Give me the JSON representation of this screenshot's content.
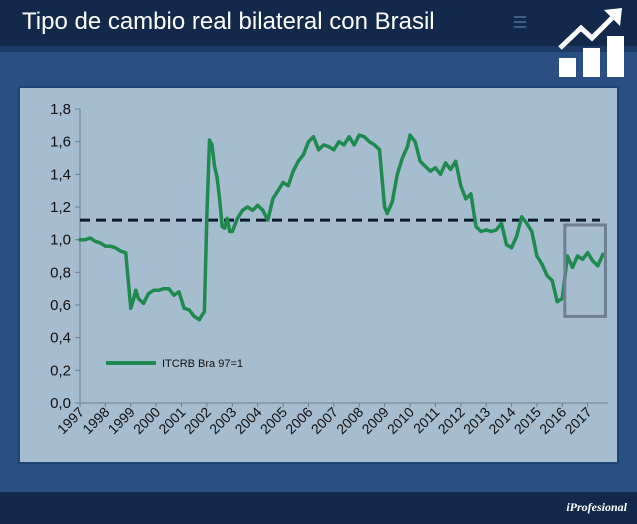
{
  "header": {
    "title": "Tipo de cambio real bilateral con Brasil"
  },
  "logo": {
    "icon": "growth-chart-icon"
  },
  "footer": {
    "brand": "iProfesional"
  },
  "colors": {
    "header_bg": "#13294b",
    "page_bg": "#2a4f82",
    "plot_bg": "#a6bccf",
    "series": "#1e8a4f",
    "reference": "#0d1b2e",
    "highlight_box": "#6f8092"
  },
  "chart_data": {
    "type": "line",
    "title": "Tipo de cambio real bilateral con Brasil",
    "xlabel": "",
    "ylabel": "",
    "x_range": [
      1997,
      2017.8
    ],
    "ylim": [
      0,
      1.8
    ],
    "y_ticks": [
      "0,0",
      "0,2",
      "0,4",
      "0,6",
      "0,8",
      "1,0",
      "1,2",
      "1,4",
      "1,6",
      "1,8"
    ],
    "y_tick_values": [
      0,
      0.2,
      0.4,
      0.6,
      0.8,
      1.0,
      1.2,
      1.4,
      1.6,
      1.8
    ],
    "x_ticks": [
      "1997",
      "1998",
      "1999",
      "2000",
      "2001",
      "2002",
      "2003",
      "2004",
      "2005",
      "2006",
      "2007",
      "2008",
      "2009",
      "2010",
      "2011",
      "2012",
      "2013",
      "2014",
      "2015",
      "2016",
      "2017"
    ],
    "grid": false,
    "legend": {
      "position": "bottom-left",
      "label": "ITCRB Bra 97=1"
    },
    "reference_line": {
      "value": 1.12,
      "style": "dashed"
    },
    "highlight_range": {
      "x": [
        2016.1,
        2017.7
      ],
      "y": [
        0.53,
        1.09
      ]
    },
    "series": [
      {
        "name": "ITCRB Bra 97=1",
        "x": [
          1997.0,
          1997.2,
          1997.4,
          1997.6,
          1997.8,
          1998.0,
          1998.2,
          1998.4,
          1998.6,
          1998.8,
          1999.0,
          1999.1,
          1999.2,
          1999.3,
          1999.5,
          1999.7,
          1999.9,
          2000.1,
          2000.3,
          2000.5,
          2000.7,
          2000.9,
          2001.1,
          2001.3,
          2001.5,
          2001.7,
          2001.9,
          2002.0,
          2002.1,
          2002.2,
          2002.3,
          2002.4,
          2002.5,
          2002.6,
          2002.7,
          2002.8,
          2002.9,
          2003.0,
          2003.2,
          2003.4,
          2003.6,
          2003.8,
          2004.0,
          2004.2,
          2004.4,
          2004.6,
          2004.8,
          2005.0,
          2005.2,
          2005.4,
          2005.6,
          2005.8,
          2006.0,
          2006.2,
          2006.4,
          2006.6,
          2006.8,
          2007.0,
          2007.2,
          2007.4,
          2007.6,
          2007.8,
          2008.0,
          2008.2,
          2008.4,
          2008.6,
          2008.8,
          2009.0,
          2009.1,
          2009.3,
          2009.5,
          2009.7,
          2009.9,
          2010.0,
          2010.2,
          2010.4,
          2010.6,
          2010.8,
          2011.0,
          2011.2,
          2011.4,
          2011.6,
          2011.8,
          2012.0,
          2012.2,
          2012.4,
          2012.6,
          2012.8,
          2013.0,
          2013.2,
          2013.4,
          2013.6,
          2013.8,
          2014.0,
          2014.2,
          2014.4,
          2014.6,
          2014.8,
          2015.0,
          2015.2,
          2015.4,
          2015.6,
          2015.8,
          2016.0,
          2016.2,
          2016.4,
          2016.6,
          2016.8,
          2017.0,
          2017.2,
          2017.4,
          2017.6
        ],
        "values": [
          1.0,
          1.0,
          1.01,
          0.99,
          0.98,
          0.96,
          0.96,
          0.95,
          0.93,
          0.92,
          0.58,
          0.63,
          0.69,
          0.64,
          0.61,
          0.67,
          0.69,
          0.69,
          0.7,
          0.7,
          0.66,
          0.68,
          0.58,
          0.57,
          0.53,
          0.51,
          0.56,
          1.15,
          1.61,
          1.58,
          1.45,
          1.38,
          1.25,
          1.08,
          1.07,
          1.13,
          1.05,
          1.05,
          1.13,
          1.18,
          1.2,
          1.18,
          1.21,
          1.18,
          1.12,
          1.25,
          1.3,
          1.35,
          1.33,
          1.42,
          1.48,
          1.52,
          1.6,
          1.63,
          1.55,
          1.58,
          1.57,
          1.55,
          1.6,
          1.58,
          1.63,
          1.58,
          1.64,
          1.63,
          1.6,
          1.58,
          1.55,
          1.2,
          1.16,
          1.23,
          1.4,
          1.5,
          1.57,
          1.64,
          1.6,
          1.48,
          1.45,
          1.42,
          1.44,
          1.4,
          1.47,
          1.43,
          1.48,
          1.33,
          1.25,
          1.28,
          1.08,
          1.05,
          1.06,
          1.05,
          1.06,
          1.1,
          0.97,
          0.95,
          1.02,
          1.14,
          1.1,
          1.05,
          0.9,
          0.85,
          0.78,
          0.75,
          0.62,
          0.64,
          0.9,
          0.83,
          0.9,
          0.88,
          0.92,
          0.87,
          0.84,
          0.91
        ]
      }
    ]
  }
}
